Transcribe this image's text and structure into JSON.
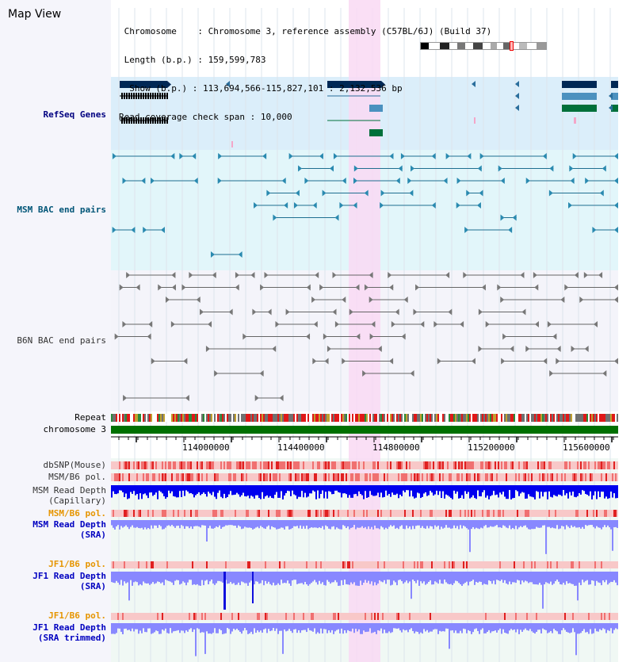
{
  "title": "Map View",
  "info": {
    "chromosome_label": "Chromosome",
    "chromosome_value": "Chromosome 3, reference assembly (C57BL/6J) (Build 37)",
    "length_label": "Length (b.p.)",
    "length_value": "159,599,783",
    "show_label": "Show (b.p.)",
    "show_value": "113,694,566-115,827,101 : 2,132,536 bp",
    "coverage_label": "Read coverage check span",
    "coverage_value": "10,000"
  },
  "tracks": {
    "refseq": "RefSeq Genes",
    "msm_bac": "MSM BAC end pairs",
    "b6n_bac": "B6N BAC end pairs",
    "repeat": "Repeat",
    "chromosome": "chromosome 3",
    "dbsnp": "dbSNP(Mouse)",
    "msm_b6_pol_1": "MSM/B6 pol.",
    "msm_depth_cap_1": "MSM Read Depth",
    "msm_depth_cap_2": "(Capillary)",
    "msm_b6_pol_2": "MSM/B6 pol.",
    "msm_depth_sra_1": "MSM Read Depth",
    "msm_depth_sra_2": "(SRA)",
    "jf1_b6_pol_1": "JF1/B6 pol.",
    "jf1_depth_sra_1": "JF1 Read Depth",
    "jf1_depth_sra_2": "(SRA)",
    "jf1_b6_pol_2": "JF1/B6 pol.",
    "jf1_depth_trim_1": "JF1 Read Depth",
    "jf1_depth_trim_2": "(SRA trimmed)"
  },
  "ruler": {
    "ticks": [
      "114000000",
      "114400000",
      "114800000",
      "115200000",
      "115600000"
    ]
  },
  "colors": {
    "refseq_bg": "#dbeefa",
    "msm_bg": "#e2f6fa",
    "b6n_bg": "#f2f2fa",
    "highlight": "#f9d9f3",
    "chrom": "#007000",
    "snp_light": "#f8c8c8",
    "snp_red": "#ee3333",
    "depth_dark": "#0000ee",
    "depth_light": "#8888ff"
  }
}
